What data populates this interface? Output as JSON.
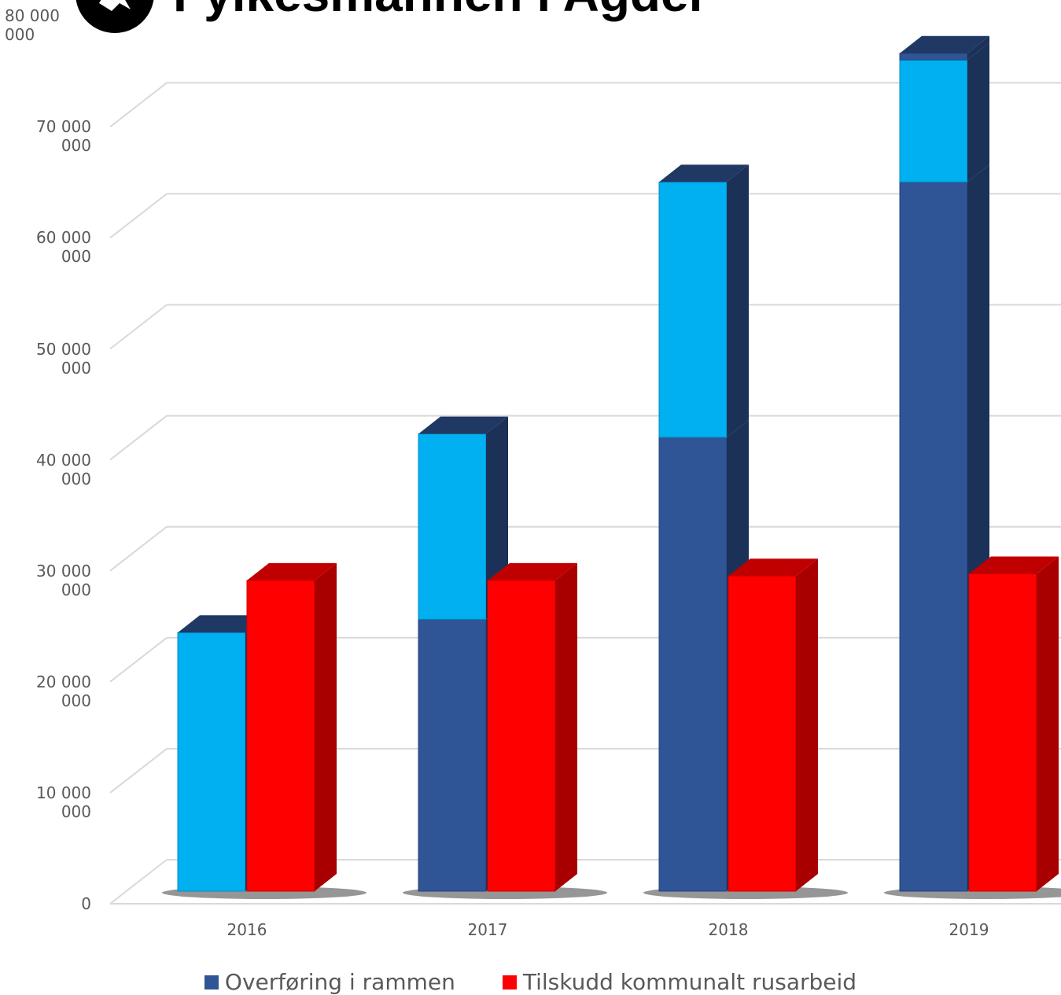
{
  "header": {
    "title": "Fylkesmannen i Agder",
    "logo": "lion-emblem-icon"
  },
  "chart_data": {
    "type": "bar",
    "categories": [
      "2016",
      "2017",
      "2018",
      "2019"
    ],
    "ylim": [
      0,
      80000000
    ],
    "yticks": [
      "0",
      "10 000 000",
      "20 000 000",
      "30 000 000",
      "40 000 000",
      "50 000 000",
      "60 000 000",
      "70 000 000",
      "80 000 000"
    ],
    "grid": true,
    "legend_position": "bottom",
    "series": [
      {
        "name": "Overføring i rammen",
        "stack": "a",
        "color": "#2F5597",
        "values": [
          0,
          24500000,
          40900000,
          63900000
        ]
      },
      {
        "name": "",
        "stack": "a",
        "color": "#00B0F0",
        "values": [
          23300000,
          16700000,
          23000000,
          11000000
        ]
      },
      {
        "name": "",
        "stack": "a",
        "color": "#2F5597",
        "values": [
          0,
          0,
          0,
          600000
        ]
      },
      {
        "name": "Tilskudd kommunalt rusarbeid",
        "stack": "b",
        "color": "#FF0000",
        "values": [
          28000000,
          28000000,
          28400000,
          28600000
        ]
      }
    ]
  }
}
